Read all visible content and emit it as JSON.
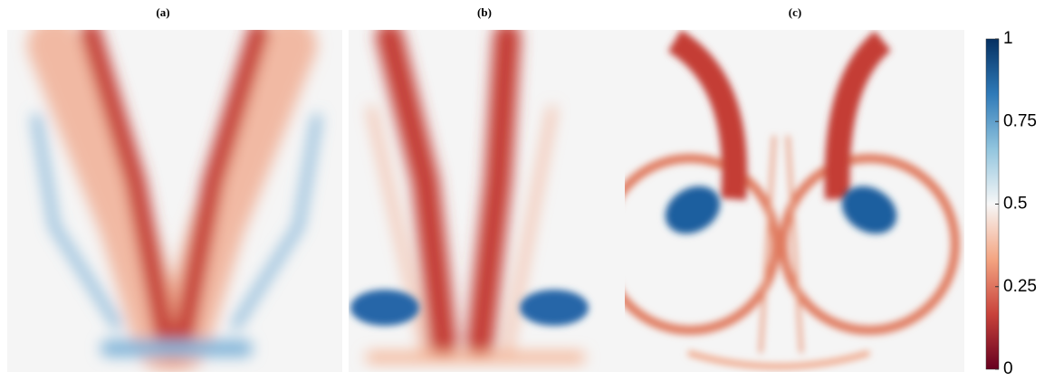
{
  "panels": [
    {
      "label": "(a)"
    },
    {
      "label": "(b)"
    },
    {
      "label": "(c)"
    }
  ],
  "colorbar": {
    "lim": [
      0,
      1
    ],
    "ticks": [
      0,
      0.25,
      0.5,
      0.75,
      1
    ],
    "colors": [
      "#67001f",
      "#c8423b",
      "#f4a582",
      "#f7f7f7",
      "#92c5de",
      "#2f7ab8",
      "#053061"
    ]
  }
}
